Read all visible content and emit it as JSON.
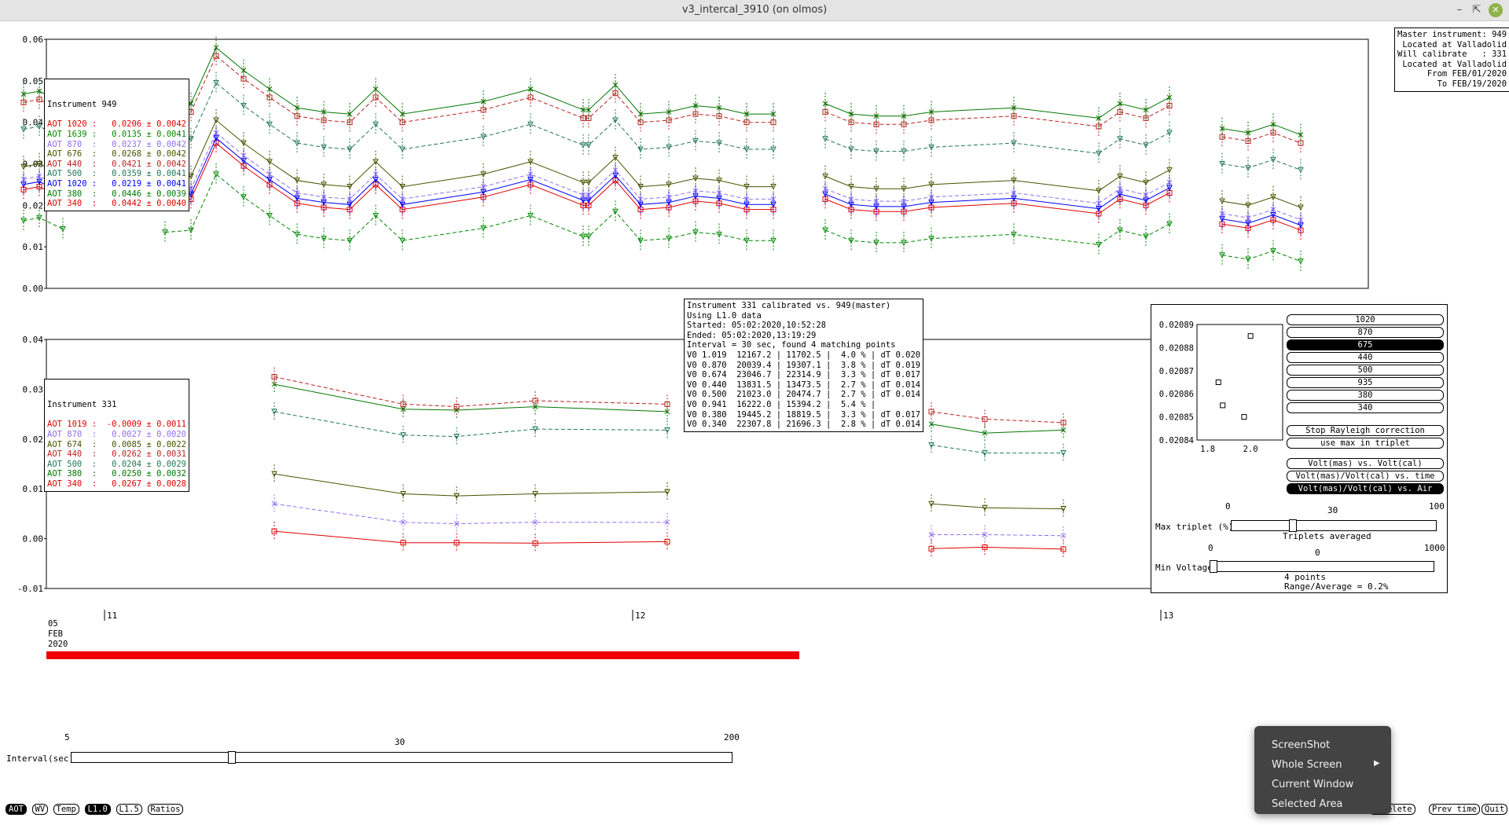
{
  "window": {
    "title": "v3_intercal_3910 (on olmos)",
    "min_icon": "minimize-icon",
    "max_icon": "maximize-icon",
    "close_icon": "close-icon"
  },
  "top_chart": {
    "y_ticks": [
      "0.06",
      "0.05",
      "0.04",
      "0.03",
      "0.02",
      "0.01",
      "0.00"
    ],
    "legend_title": "Instrument 949",
    "legend": [
      {
        "label": "AOT 1020 :   0.0206 ± 0.0042",
        "color": "#e00000"
      },
      {
        "label": "AOT 1639 :   0.0135 ± 0.0041",
        "color": "#008800"
      },
      {
        "label": "AOT 870  :   0.0237 ± 0.0042",
        "color": "#9070ee"
      },
      {
        "label": "AOT 676  :   0.0268 ± 0.0042",
        "color": "#445500"
      },
      {
        "label": "AOT 440  :   0.0421 ± 0.0042",
        "color": "#bb2222"
      },
      {
        "label": "AOT 500  :   0.0359 ± 0.0041",
        "color": "#227755"
      },
      {
        "label": "AOT 1020 :   0.0219 ± 0.0041",
        "color": "#0000ff"
      },
      {
        "label": "AOT 380  :   0.0446 ± 0.0039",
        "color": "#007700"
      },
      {
        "label": "AOT 340  :   0.0442 ± 0.0040",
        "color": "#dd0000"
      }
    ]
  },
  "master_box": {
    "lines": [
      "Master instrument: 949",
      "Located at Valladolid",
      "Will calibrate   : 331",
      "Located at Valladolid",
      "From FEB/01/2020",
      "To FEB/19/2020"
    ]
  },
  "bottom_chart": {
    "y_ticks": [
      "0.04",
      "0.03",
      "0.02",
      "0.01",
      "0.00",
      "-0.01"
    ],
    "legend_title": "Instrument 331",
    "legend": [
      {
        "label": "AOT 1019 :  -0.0009 ± 0.0011",
        "color": "#e00000"
      },
      {
        "label": "AOT 870  :   0.0027 ± 0.0020",
        "color": "#9070ee"
      },
      {
        "label": "AOT 674  :   0.0085 ± 0.0022",
        "color": "#445500"
      },
      {
        "label": "AOT 440  :   0.0262 ± 0.0031",
        "color": "#bb2222"
      },
      {
        "label": "AOT 500  :   0.0204 ± 0.0029",
        "color": "#227755"
      },
      {
        "label": "AOT 380  :   0.0250 ± 0.0032",
        "color": "#007700"
      },
      {
        "label": "AOT 340  :   0.0267 ± 0.0028",
        "color": "#dd0000"
      }
    ]
  },
  "info_box": {
    "lines": [
      "Instrument 331 calibrated vs. 949(master)",
      "Using L1.0 data",
      "Started: 05:02:2020,10:52:28",
      "Ended: 05:02:2020,13:19:29",
      "Interval = 30 sec, found 4 matching points",
      "V0 1.019  12167.2 | 11702.5 |  4.0 % | dT 0.020",
      "V0 0.870  20039.4 | 19307.1 |  3.8 % | dT 0.019",
      "V0 0.674  23046.7 | 22314.9 |  3.3 % | dT 0.017",
      "V0 0.440  13831.5 | 13473.5 |  2.7 % | dT 0.014",
      "V0 0.500  21023.0 | 20474.7 |  2.7 % | dT 0.014",
      "V0 0.941  16222.0 | 15394.2 |  5.4 % |",
      "V0 0.380  19445.2 | 18819.5 |  3.3 % | dT 0.017",
      "V0 0.340  22307.8 | 21696.3 |  2.8 % | dT 0.014"
    ]
  },
  "time_axis": {
    "ticks": [
      "11",
      "12",
      "13"
    ],
    "date_line1": "05",
    "date_line2": "FEB",
    "date_line3": "2020"
  },
  "side_panel": {
    "mini_y_ticks": [
      "0.02089",
      "0.02088",
      "0.02087",
      "0.02086",
      "0.02085",
      "0.02084"
    ],
    "mini_x_ticks": [
      "1.8",
      "2.0"
    ],
    "wavelengths": [
      {
        "label": "1020",
        "active": false
      },
      {
        "label": "870",
        "active": false
      },
      {
        "label": "675",
        "active": true
      },
      {
        "label": "440",
        "active": false
      },
      {
        "label": "500",
        "active": false
      },
      {
        "label": "935",
        "active": false
      },
      {
        "label": "380",
        "active": false
      },
      {
        "label": "340",
        "active": false
      }
    ],
    "stop_rayleigh": "Stop Rayleigh correction",
    "use_max": "use max in triplet",
    "plot_mode_1": "Volt(mas) vs. Volt(cal)",
    "plot_mode_2": "Volt(mas)/Volt(cal) vs. time",
    "plot_mode_3": "Volt(mas)/Volt(cal) vs. Air Mass",
    "max_triplet_label": "Max triplet (%)",
    "max_triplet_min": "0",
    "max_triplet_mid": "30",
    "max_triplet_max": "100",
    "max_triplet_value": 30,
    "triplets_averaged": "Triplets averaged",
    "min_voltage_label": "Min Voltage",
    "min_voltage_min": "0",
    "min_voltage_mid": "0",
    "min_voltage_max": "1000",
    "min_voltage_value": 0,
    "points": "4 points",
    "range_avg": "Range/Average = 0.2%"
  },
  "interval_slider": {
    "label": "Interval(sec)",
    "min": "5",
    "mid": "30",
    "max": "200",
    "value": 30
  },
  "toolbar": {
    "left": [
      {
        "label": "AOT",
        "active": true
      },
      {
        "label": "WV",
        "active": false
      },
      {
        "label": "Temp",
        "active": false
      },
      {
        "label": "L1.0",
        "active": true
      },
      {
        "label": "L1.5",
        "active": false
      },
      {
        "label": "Ratios",
        "active": false
      }
    ],
    "undelete": "Undelete",
    "prev_time": "Prev time",
    "quit": "Quit"
  },
  "context_menu": {
    "items": [
      "ScreenShot",
      "Whole Screen",
      "Current Window",
      "Selected Area"
    ],
    "submenu_icon": "submenu-arrow-icon"
  }
}
